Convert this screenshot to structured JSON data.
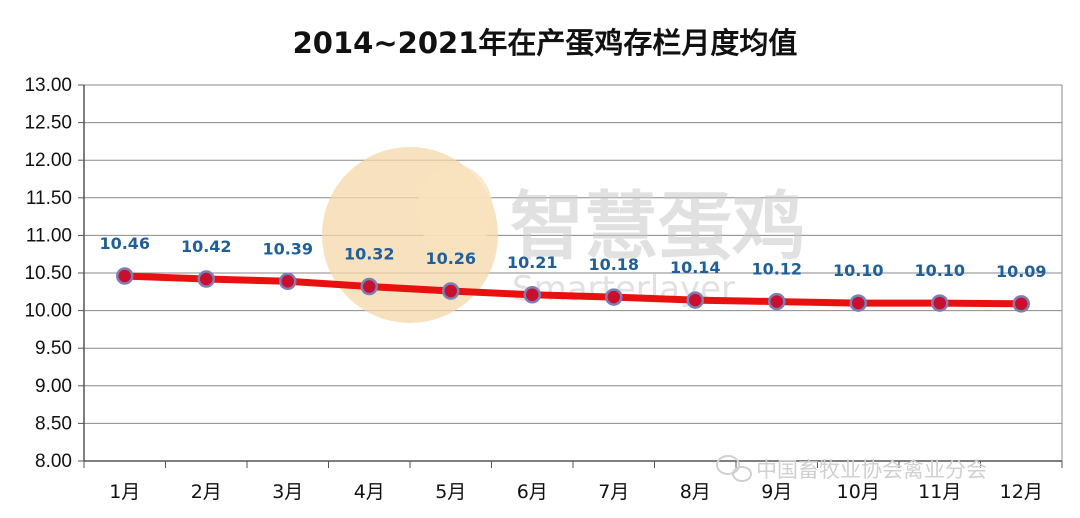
{
  "chart_data": {
    "type": "line",
    "title": "2014~2021年在产蛋鸡存栏月度均值",
    "categories": [
      "1月",
      "2月",
      "3月",
      "4月",
      "5月",
      "6月",
      "7月",
      "8月",
      "9月",
      "10月",
      "11月",
      "12月"
    ],
    "values": [
      10.46,
      10.42,
      10.39,
      10.32,
      10.26,
      10.21,
      10.18,
      10.14,
      10.12,
      10.1,
      10.1,
      10.09
    ],
    "data_labels": [
      "10.46",
      "10.42",
      "10.39",
      "10.32",
      "10.26",
      "10.21",
      "10.18",
      "10.14",
      "10.12",
      "10.10",
      "10.10",
      "10.09"
    ],
    "ylim": [
      8.0,
      13.0
    ],
    "yticks": [
      "13.00",
      "12.50",
      "12.00",
      "11.50",
      "11.00",
      "10.50",
      "10.00",
      "9.50",
      "9.00",
      "8.50",
      "8.00"
    ],
    "grid": true,
    "line_color": "#e8110f",
    "marker_fill": "#c8102e",
    "marker_stroke": "#7b7fb5",
    "label_color": "#1f5f9a"
  },
  "watermark": {
    "brand": "智慧蛋鸡",
    "brand_en": "Smarterlayer",
    "source": "中国畜牧业协会禽业分会"
  }
}
